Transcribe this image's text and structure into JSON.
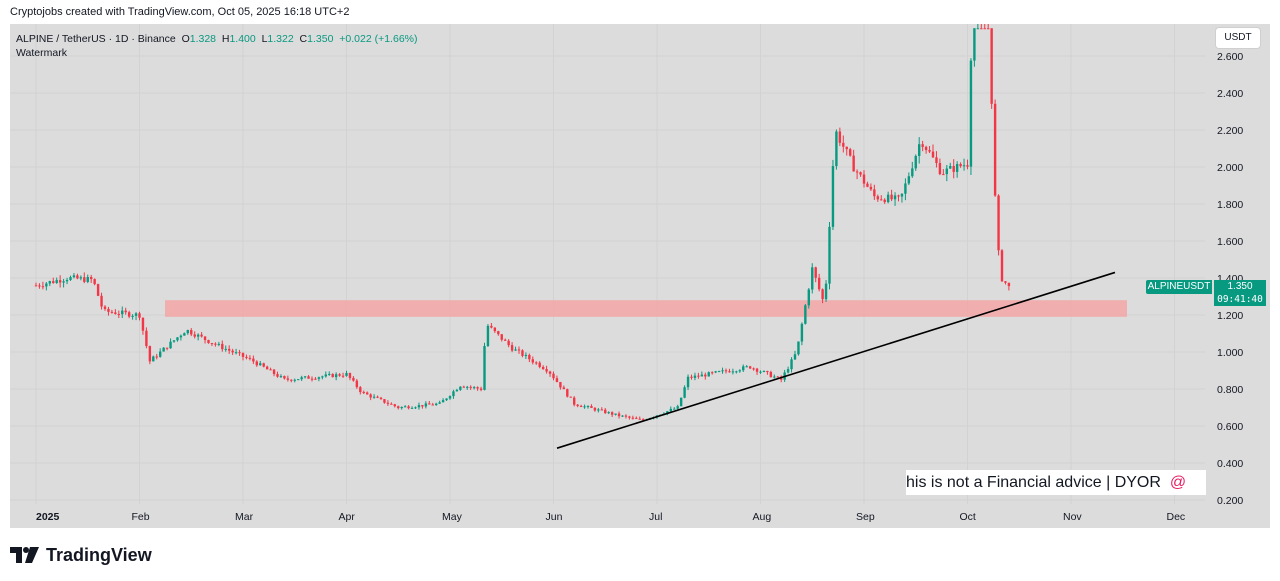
{
  "header": {
    "credit": "Cryptojobs created with TradingView.com, Oct 05, 2025 16:18 UTC+2"
  },
  "legend": {
    "symbol_line": "ALPINE / TetherUS · 1D · Binance",
    "open_label": "O",
    "open": "1.328",
    "high_label": "H",
    "high": "1.400",
    "low_label": "L",
    "low": "1.322",
    "close_label": "C",
    "close": "1.350",
    "change": "+0.022 (+1.66%)",
    "watermark": "Watermark"
  },
  "toolbar": {
    "currency": "USDT"
  },
  "price_tag": {
    "symbol": "ALPINEUSDT",
    "price": "1.350",
    "countdown": "09:41:40"
  },
  "annotation": {
    "text": "his is not a Financial advice | DYOR",
    "icon": "at-icon"
  },
  "footer": {
    "brand": "TradingView"
  },
  "colors": {
    "up": "#089981",
    "down": "#f23645",
    "zone": "#f4a6a6",
    "trendline": "#000000",
    "background": "#dcdcdc"
  },
  "chart_data": {
    "type": "candlestick",
    "y_axis": {
      "range": [
        0.15,
        2.75
      ],
      "ticks": [
        "2.600",
        "2.400",
        "2.200",
        "2.000",
        "1.800",
        "1.600",
        "1.400",
        "1.200",
        "1.000",
        "0.800",
        "0.600",
        "0.400",
        "0.200"
      ]
    },
    "x_axis": {
      "ticks": [
        "2025",
        "Feb",
        "Mar",
        "Apr",
        "May",
        "Jun",
        "Jul",
        "Aug",
        "Sep",
        "Oct",
        "Nov",
        "Dec"
      ]
    },
    "resistance_zone": {
      "low": 1.19,
      "high": 1.28
    },
    "trendline": {
      "from_value": 0.48,
      "to_value": 1.43
    },
    "last_price": 1.35,
    "price_path": [
      {
        "month": 0.0,
        "price": 1.36
      },
      {
        "month": 0.3,
        "price": 1.4
      },
      {
        "month": 0.55,
        "price": 1.39
      },
      {
        "month": 0.65,
        "price": 1.22
      },
      {
        "month": 1.0,
        "price": 1.2
      },
      {
        "month": 1.1,
        "price": 0.95
      },
      {
        "month": 1.45,
        "price": 1.12
      },
      {
        "month": 1.7,
        "price": 1.05
      },
      {
        "month": 2.1,
        "price": 0.95
      },
      {
        "month": 2.4,
        "price": 0.85
      },
      {
        "month": 3.0,
        "price": 0.88
      },
      {
        "month": 3.15,
        "price": 0.78
      },
      {
        "month": 3.5,
        "price": 0.7
      },
      {
        "month": 3.9,
        "price": 0.72
      },
      {
        "month": 4.1,
        "price": 0.82
      },
      {
        "month": 4.3,
        "price": 0.8
      },
      {
        "month": 4.35,
        "price": 1.15
      },
      {
        "month": 4.6,
        "price": 1.02
      },
      {
        "month": 4.95,
        "price": 0.9
      },
      {
        "month": 5.2,
        "price": 0.72
      },
      {
        "month": 5.6,
        "price": 0.66
      },
      {
        "month": 5.85,
        "price": 0.63
      },
      {
        "month": 6.2,
        "price": 0.7
      },
      {
        "month": 6.3,
        "price": 0.86
      },
      {
        "month": 6.9,
        "price": 0.92
      },
      {
        "month": 7.2,
        "price": 0.85
      },
      {
        "month": 7.35,
        "price": 1.0
      },
      {
        "month": 7.5,
        "price": 1.45
      },
      {
        "month": 7.62,
        "price": 1.25
      },
      {
        "month": 7.72,
        "price": 2.2
      },
      {
        "month": 7.9,
        "price": 2.0
      },
      {
        "month": 8.1,
        "price": 1.84
      },
      {
        "month": 8.35,
        "price": 1.82
      },
      {
        "month": 8.55,
        "price": 2.15
      },
      {
        "month": 8.75,
        "price": 1.97
      },
      {
        "month": 9.0,
        "price": 2.02
      },
      {
        "month": 9.05,
        "price": 2.9
      },
      {
        "month": 9.2,
        "price": 2.9
      },
      {
        "month": 9.28,
        "price": 1.62
      },
      {
        "month": 9.33,
        "price": 1.4
      },
      {
        "month": 9.4,
        "price": 1.35
      }
    ]
  }
}
